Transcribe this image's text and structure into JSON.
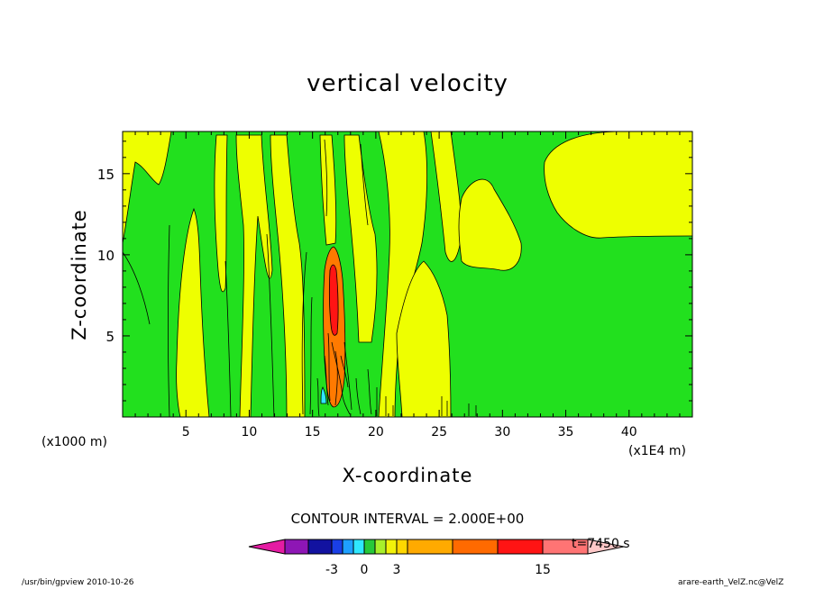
{
  "chart_data": {
    "type": "heatmap",
    "title": "vertical velocity",
    "xlabel": "X-coordinate",
    "ylabel": "Z-coordinate",
    "x_unit_label": "(x1000 m)",
    "x_scale_label": "(x1E4 m)",
    "xlim": [
      0,
      45
    ],
    "ylim": [
      0,
      17.6
    ],
    "xticks": [
      5,
      10,
      15,
      20,
      25,
      30,
      35,
      40
    ],
    "yticks": [
      5,
      10,
      15
    ],
    "contour_interval_label": "CONTOUR INTERVAL = 2.000E+00",
    "time_label": "t=7450 s",
    "colorbar": {
      "tick_labels": [
        "-3",
        "0",
        "3",
        "15"
      ],
      "tick_values": [
        -3,
        0,
        3,
        15
      ],
      "colors": [
        "#e51ca3",
        "#8e16b5",
        "#1212a0",
        "#1a3fe6",
        "#1ea0ff",
        "#2fe8ff",
        "#26c93a",
        "#a8f02b",
        "#f2f20a",
        "#ffd700",
        "#ffaa00",
        "#ff6a00",
        "#ff1414",
        "#ff7474",
        "#ffc8c8"
      ]
    },
    "field_colors": {
      "background": "#22e01e",
      "positive_weak": "#eeff00",
      "positive_strong": "#ff7a00",
      "contour_line": "#000000"
    },
    "features": [
      {
        "type": "updraft_core",
        "x": 16.8,
        "z_range": [
          0.5,
          10.7
        ]
      }
    ]
  },
  "footer": {
    "left": "/usr/bin/gpview   2010-10-26",
    "right": "arare-earth_VelZ.nc@VelZ"
  }
}
